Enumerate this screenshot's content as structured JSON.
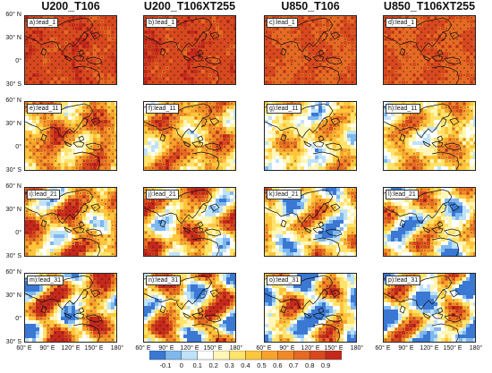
{
  "columns": [
    "U200_T106",
    "U200_T106XT255",
    "U850_T106",
    "U850_T106XT255"
  ],
  "panels": [
    [
      "a):lead_1",
      "b):lead_1",
      "c):lead_1",
      "d):lead_1"
    ],
    [
      "e):lead_11",
      "f):lead_11",
      "g):lead_11",
      "h):lead_11"
    ],
    [
      "i):lead_21",
      "j):lead_21",
      "k):lead_21",
      "l):lead_21"
    ],
    [
      "m):lead_31",
      "n):lead_31",
      "o):lead_31",
      "p):lead_31"
    ]
  ],
  "lat_ticks": [
    "60° N",
    "30° N",
    "0°",
    "30° S"
  ],
  "lon_ticks": [
    "60° E",
    "90° E",
    "120° E",
    "150° E",
    "180°"
  ],
  "chart_data": {
    "type": "heatmap",
    "xlabel": "",
    "ylabel": "",
    "lon_range": [
      60,
      180
    ],
    "lat_range": [
      -30,
      60
    ],
    "colorbar_ticks": [
      "-0.1",
      "0",
      "0.1",
      "0.2",
      "0.3",
      "0.4",
      "0.5",
      "0.6",
      "0.7",
      "0.8",
      "0.9"
    ],
    "colorbar_colors": [
      "#3a78d4",
      "#7fb8ee",
      "#bfe2f8",
      "#ffffff",
      "#fff6b8",
      "#ffe36a",
      "#ffc53c",
      "#f9a32e",
      "#f08a28",
      "#e66a23",
      "#d8481e",
      "#c4291c"
    ],
    "panel_mean_level": [
      [
        0.85,
        0.85,
        0.8,
        0.8
      ],
      [
        0.55,
        0.5,
        0.35,
        0.4
      ],
      [
        0.5,
        0.45,
        0.3,
        0.3
      ],
      [
        0.45,
        0.4,
        0.25,
        0.25
      ]
    ],
    "stippling": "dots mark statistically significant values"
  }
}
